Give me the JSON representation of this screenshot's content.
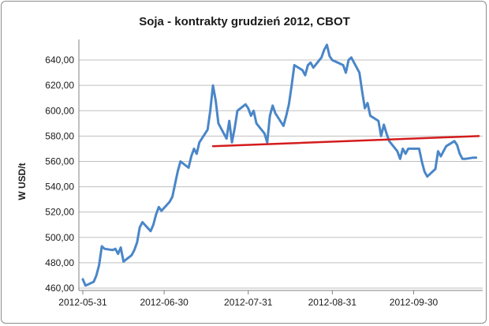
{
  "chart_data": {
    "type": "line",
    "title": "Soja - kontrakty grudzień 2012, CBOT",
    "xlabel": "",
    "ylabel": "W USD/t",
    "ylim": [
      460,
      650
    ],
    "y_ticks": [
      "460,00",
      "480,00",
      "500,00",
      "520,00",
      "540,00",
      "560,00",
      "580,00",
      "600,00",
      "620,00",
      "640,00"
    ],
    "x_ticks": [
      "2012-05-31",
      "2012-06-30",
      "2012-07-31",
      "2012-08-31",
      "2012-09-30"
    ],
    "grid": "horizontal",
    "colors": {
      "price_line": "#4a86c8",
      "trend_line": "#d41c1c",
      "grid": "#bfbfbf",
      "axis": "#808080"
    },
    "series": [
      {
        "x": [
          "2012-05-31",
          "2012-06-01",
          "2012-06-04",
          "2012-06-05",
          "2012-06-06",
          "2012-06-07",
          "2012-06-08",
          "2012-06-11",
          "2012-06-12",
          "2012-06-13",
          "2012-06-14",
          "2012-06-15",
          "2012-06-18",
          "2012-06-19",
          "2012-06-20",
          "2012-06-21",
          "2012-06-22",
          "2012-06-25",
          "2012-06-26",
          "2012-06-27",
          "2012-06-28",
          "2012-06-29",
          "2012-07-02",
          "2012-07-03",
          "2012-07-05",
          "2012-07-06",
          "2012-07-09",
          "2012-07-10",
          "2012-07-11",
          "2012-07-12",
          "2012-07-13",
          "2012-07-16",
          "2012-07-17",
          "2012-07-18",
          "2012-07-19",
          "2012-07-20",
          "2012-07-23",
          "2012-07-24",
          "2012-07-25",
          "2012-07-26",
          "2012-07-27",
          "2012-07-30",
          "2012-07-31",
          "2012-08-01",
          "2012-08-02",
          "2012-08-03",
          "2012-08-06",
          "2012-08-07",
          "2012-08-08",
          "2012-08-09",
          "2012-08-10",
          "2012-08-13",
          "2012-08-14",
          "2012-08-15",
          "2012-08-16",
          "2012-08-17",
          "2012-08-20",
          "2012-08-21",
          "2012-08-22",
          "2012-08-23",
          "2012-08-24",
          "2012-08-27",
          "2012-08-28",
          "2012-08-29",
          "2012-08-30",
          "2012-08-31",
          "2012-09-04",
          "2012-09-05",
          "2012-09-06",
          "2012-09-07",
          "2012-09-10",
          "2012-09-11",
          "2012-09-12",
          "2012-09-13",
          "2012-09-14",
          "2012-09-17",
          "2012-09-18",
          "2012-09-19",
          "2012-09-20",
          "2012-09-21",
          "2012-09-24",
          "2012-09-25",
          "2012-09-26",
          "2012-09-27",
          "2012-09-28",
          "2012-10-01",
          "2012-10-02",
          "2012-10-03",
          "2012-10-04",
          "2012-10-05",
          "2012-10-08",
          "2012-10-09",
          "2012-10-10",
          "2012-10-11",
          "2012-10-12",
          "2012-10-15",
          "2012-10-16",
          "2012-10-17",
          "2012-10-18",
          "2012-10-19",
          "2012-10-22",
          "2012-10-23"
        ],
        "values": [
          467,
          462,
          465,
          470,
          478,
          493,
          491,
          490,
          491,
          487,
          492,
          481,
          486,
          490,
          496,
          508,
          512,
          505,
          510,
          518,
          524,
          521,
          528,
          532,
          552,
          560,
          555,
          564,
          570,
          566,
          575,
          585,
          600,
          620,
          608,
          590,
          578,
          592,
          575,
          586,
          600,
          605,
          602,
          596,
          600,
          590,
          582,
          575,
          596,
          604,
          598,
          588,
          596,
          605,
          620,
          636,
          632,
          628,
          636,
          638,
          634,
          642,
          648,
          652,
          643,
          640,
          636,
          630,
          640,
          642,
          630,
          615,
          602,
          606,
          596,
          592,
          580,
          589,
          582,
          576,
          568,
          562,
          570,
          566,
          570,
          570,
          570,
          560,
          552,
          548,
          554,
          568,
          564,
          568,
          572,
          576,
          573,
          566,
          562,
          562,
          563,
          563
        ],
        "ignore_tail": true
      },
      {
        "x": [
          "2012-07-18",
          "2012-10-24"
        ],
        "values": [
          572,
          580
        ]
      }
    ]
  }
}
